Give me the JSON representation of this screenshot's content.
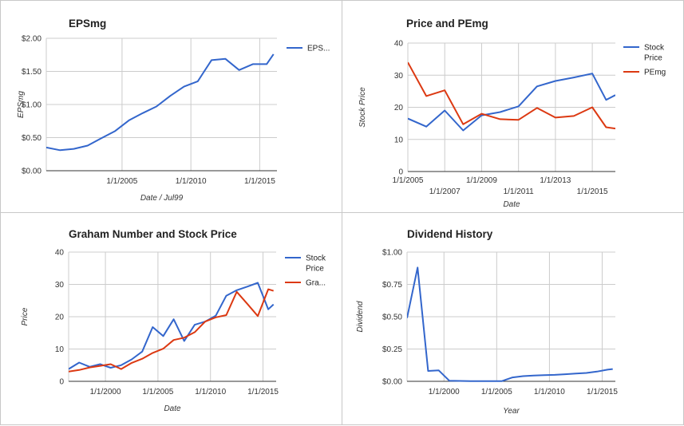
{
  "colors": {
    "blue": "#3366cc",
    "red": "#dc3912",
    "grid": "#cccccc"
  },
  "chart_data": [
    {
      "type": "line",
      "title": "EPSmg",
      "xlabel": "Date / Jul99",
      "ylabel": "EPSmg",
      "xlim": [
        1999.5,
        2016.25
      ],
      "ylim": [
        0,
        2
      ],
      "yticks": [
        0,
        0.5,
        1,
        1.5,
        2
      ],
      "ytick_labels": [
        "$0.00",
        "$0.50",
        "$1.00",
        "$1.50",
        "$2.00"
      ],
      "xticks": [
        2005,
        2010,
        2015
      ],
      "xtick_labels": [
        "1/1/2005",
        "1/1/2010",
        "1/1/2015"
      ],
      "legend_position": "right",
      "series": [
        {
          "name": "EPS...",
          "color": "#3366cc",
          "x": [
            1999.5,
            2000.5,
            2001.5,
            2002.5,
            2003.5,
            2004.5,
            2005.5,
            2006.5,
            2007.5,
            2008.5,
            2009.5,
            2010.5,
            2011.5,
            2012.5,
            2013.5,
            2014.5,
            2015.5,
            2016.0
          ],
          "y": [
            0.35,
            0.31,
            0.33,
            0.38,
            0.49,
            0.6,
            0.76,
            0.87,
            0.97,
            1.13,
            1.27,
            1.35,
            1.67,
            1.69,
            1.52,
            1.61,
            1.61,
            1.76
          ]
        }
      ]
    },
    {
      "type": "line",
      "title": "Price and PEmg",
      "xlabel": "Date",
      "ylabel": "Stock Price",
      "xlim": [
        2005,
        2016.25
      ],
      "ylim": [
        0,
        40
      ],
      "yticks": [
        0,
        10,
        20,
        30,
        40
      ],
      "ytick_labels": [
        "0",
        "10",
        "20",
        "30",
        "40"
      ],
      "xticks": [
        2005,
        2007,
        2009,
        2011,
        2013,
        2015
      ],
      "xtick_labels": [
        "1/1/2005",
        "1/1/2007",
        "1/1/2009",
        "1/1/2011",
        "1/1/2013",
        "1/1/2015"
      ],
      "xtick_staggered": true,
      "legend_position": "right",
      "series": [
        {
          "name": "Stock Price",
          "color": "#3366cc",
          "x": [
            2005.0,
            2006.0,
            2007.0,
            2008.0,
            2009.0,
            2010.0,
            2011.0,
            2012.0,
            2013.0,
            2014.0,
            2015.0,
            2015.75,
            2016.25
          ],
          "y": [
            16.5,
            14,
            19,
            12.8,
            17.5,
            18.5,
            20.3,
            26.5,
            28.2,
            29.3,
            30.5,
            22.3,
            23.8
          ]
        },
        {
          "name": "PEmg",
          "color": "#dc3912",
          "x": [
            2005.0,
            2006.0,
            2007.0,
            2008.0,
            2009.0,
            2010.0,
            2011.0,
            2012.0,
            2013.0,
            2014.0,
            2015.0,
            2015.75,
            2016.25
          ],
          "y": [
            34,
            23.5,
            25.3,
            14.7,
            18,
            16.3,
            16.1,
            19.8,
            16.8,
            17.3,
            20,
            13.8,
            13.4
          ]
        }
      ]
    },
    {
      "type": "line",
      "title": "Graham Number and Stock Price",
      "xlabel": "Date",
      "ylabel": "Price",
      "xlim": [
        1996.5,
        2016.25
      ],
      "ylim": [
        0,
        40
      ],
      "yticks": [
        0,
        10,
        20,
        30,
        40
      ],
      "ytick_labels": [
        "0",
        "10",
        "20",
        "30",
        "40"
      ],
      "xticks": [
        2000,
        2005,
        2010,
        2015
      ],
      "xtick_labels": [
        "1/1/2000",
        "1/1/2005",
        "1/1/2010",
        "1/1/2015"
      ],
      "legend_position": "right",
      "series": [
        {
          "name": "Stock Price",
          "color": "#3366cc",
          "x": [
            1996.5,
            1997.5,
            1998.5,
            1999.5,
            2000.5,
            2001.5,
            2002.5,
            2003.5,
            2004.5,
            2005.5,
            2006.5,
            2007.5,
            2008.5,
            2009.5,
            2010.5,
            2011.5,
            2012.5,
            2013.5,
            2014.5,
            2015.5,
            2016.0
          ],
          "y": [
            3.8,
            5.8,
            4.5,
            5.3,
            4.2,
            5,
            6.8,
            9.2,
            16.8,
            14,
            19.2,
            12.5,
            17.5,
            18.5,
            20.3,
            26.5,
            28.2,
            29.3,
            30.5,
            22.3,
            23.8
          ]
        },
        {
          "name": "Gra...",
          "color": "#dc3912",
          "x": [
            1996.5,
            1997.5,
            1998.5,
            1999.5,
            2000.5,
            2001.5,
            2002.5,
            2003.5,
            2004.5,
            2005.5,
            2006.5,
            2007.5,
            2008.5,
            2009.5,
            2010.5,
            2011.5,
            2012.5,
            2013.5,
            2014.5,
            2015.5,
            2016.0
          ],
          "y": [
            3,
            3.5,
            4.3,
            4.8,
            5.3,
            3.8,
            5.7,
            7,
            8.8,
            10.1,
            12.8,
            13.5,
            15.2,
            18.5,
            19.8,
            20.5,
            27.7,
            24,
            20.2,
            28.5,
            28
          ]
        }
      ]
    },
    {
      "type": "line",
      "title": "Dividend History",
      "xlabel": "Year",
      "ylabel": "Dividend",
      "xlim": [
        1996.5,
        2016.25
      ],
      "ylim": [
        0,
        1
      ],
      "yticks": [
        0,
        0.25,
        0.5,
        0.75,
        1
      ],
      "ytick_labels": [
        "$0.00",
        "$0.25",
        "$0.50",
        "$0.75",
        "$1.00"
      ],
      "xticks": [
        2000,
        2005,
        2010,
        2015
      ],
      "xtick_labels": [
        "1/1/2000",
        "1/1/2005",
        "1/1/2010",
        "1/1/2015"
      ],
      "legend_position": "none",
      "series": [
        {
          "color": "#3366cc",
          "x": [
            1996.5,
            1997.5,
            1998.5,
            1999.5,
            2000.5,
            2001.5,
            2002.5,
            2003.5,
            2004.5,
            2005.5,
            2006.5,
            2007.5,
            2008.5,
            2009.5,
            2010.5,
            2011.5,
            2012.5,
            2013.5,
            2014.5,
            2015.5,
            2016.0
          ],
          "y": [
            0.49,
            0.88,
            0.08,
            0.085,
            0.005,
            0.003,
            0.002,
            0.001,
            0.001,
            0.002,
            0.03,
            0.04,
            0.045,
            0.048,
            0.05,
            0.055,
            0.06,
            0.065,
            0.075,
            0.09,
            0.095
          ]
        }
      ]
    }
  ]
}
